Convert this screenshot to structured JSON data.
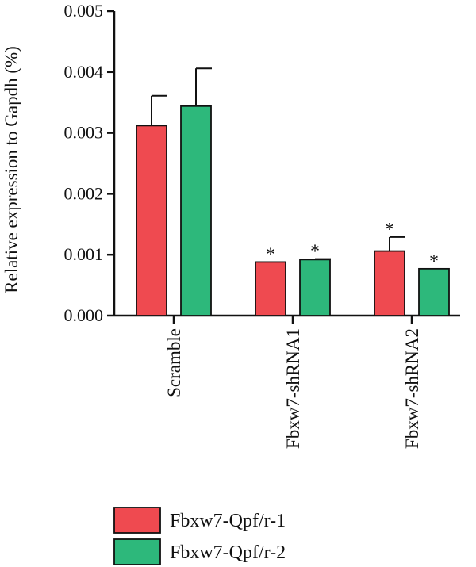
{
  "chart_data": {
    "type": "bar",
    "title": "",
    "xlabel": "",
    "ylabel": "Relative expression to Gapdh (%)",
    "ylim": [
      0,
      0.005
    ],
    "yticks": [
      0.0,
      0.001,
      0.002,
      0.003,
      0.004,
      0.005
    ],
    "ytick_labels": [
      "0.000",
      "0.001",
      "0.002",
      "0.003",
      "0.004",
      "0.005"
    ],
    "categories": [
      "Scramble",
      "Fbxw7-shRNA1",
      "Fbxw7-shRNA2"
    ],
    "series": [
      {
        "name": "Fbxw7-Qpf/r-1",
        "color": "#ef4a50",
        "values": [
          0.00312,
          0.00088,
          0.00106
        ],
        "errors": [
          0.00049,
          0.0,
          0.00023
        ],
        "significance": [
          "",
          "*",
          "*"
        ]
      },
      {
        "name": "Fbxw7-Qpf/r-2",
        "color": "#2db87b",
        "values": [
          0.00344,
          0.00092,
          0.00077
        ],
        "errors": [
          0.00062,
          1e-05,
          0.0
        ],
        "significance": [
          "",
          "*",
          "*"
        ]
      }
    ],
    "grid": false,
    "legend_position": "bottom-left"
  }
}
